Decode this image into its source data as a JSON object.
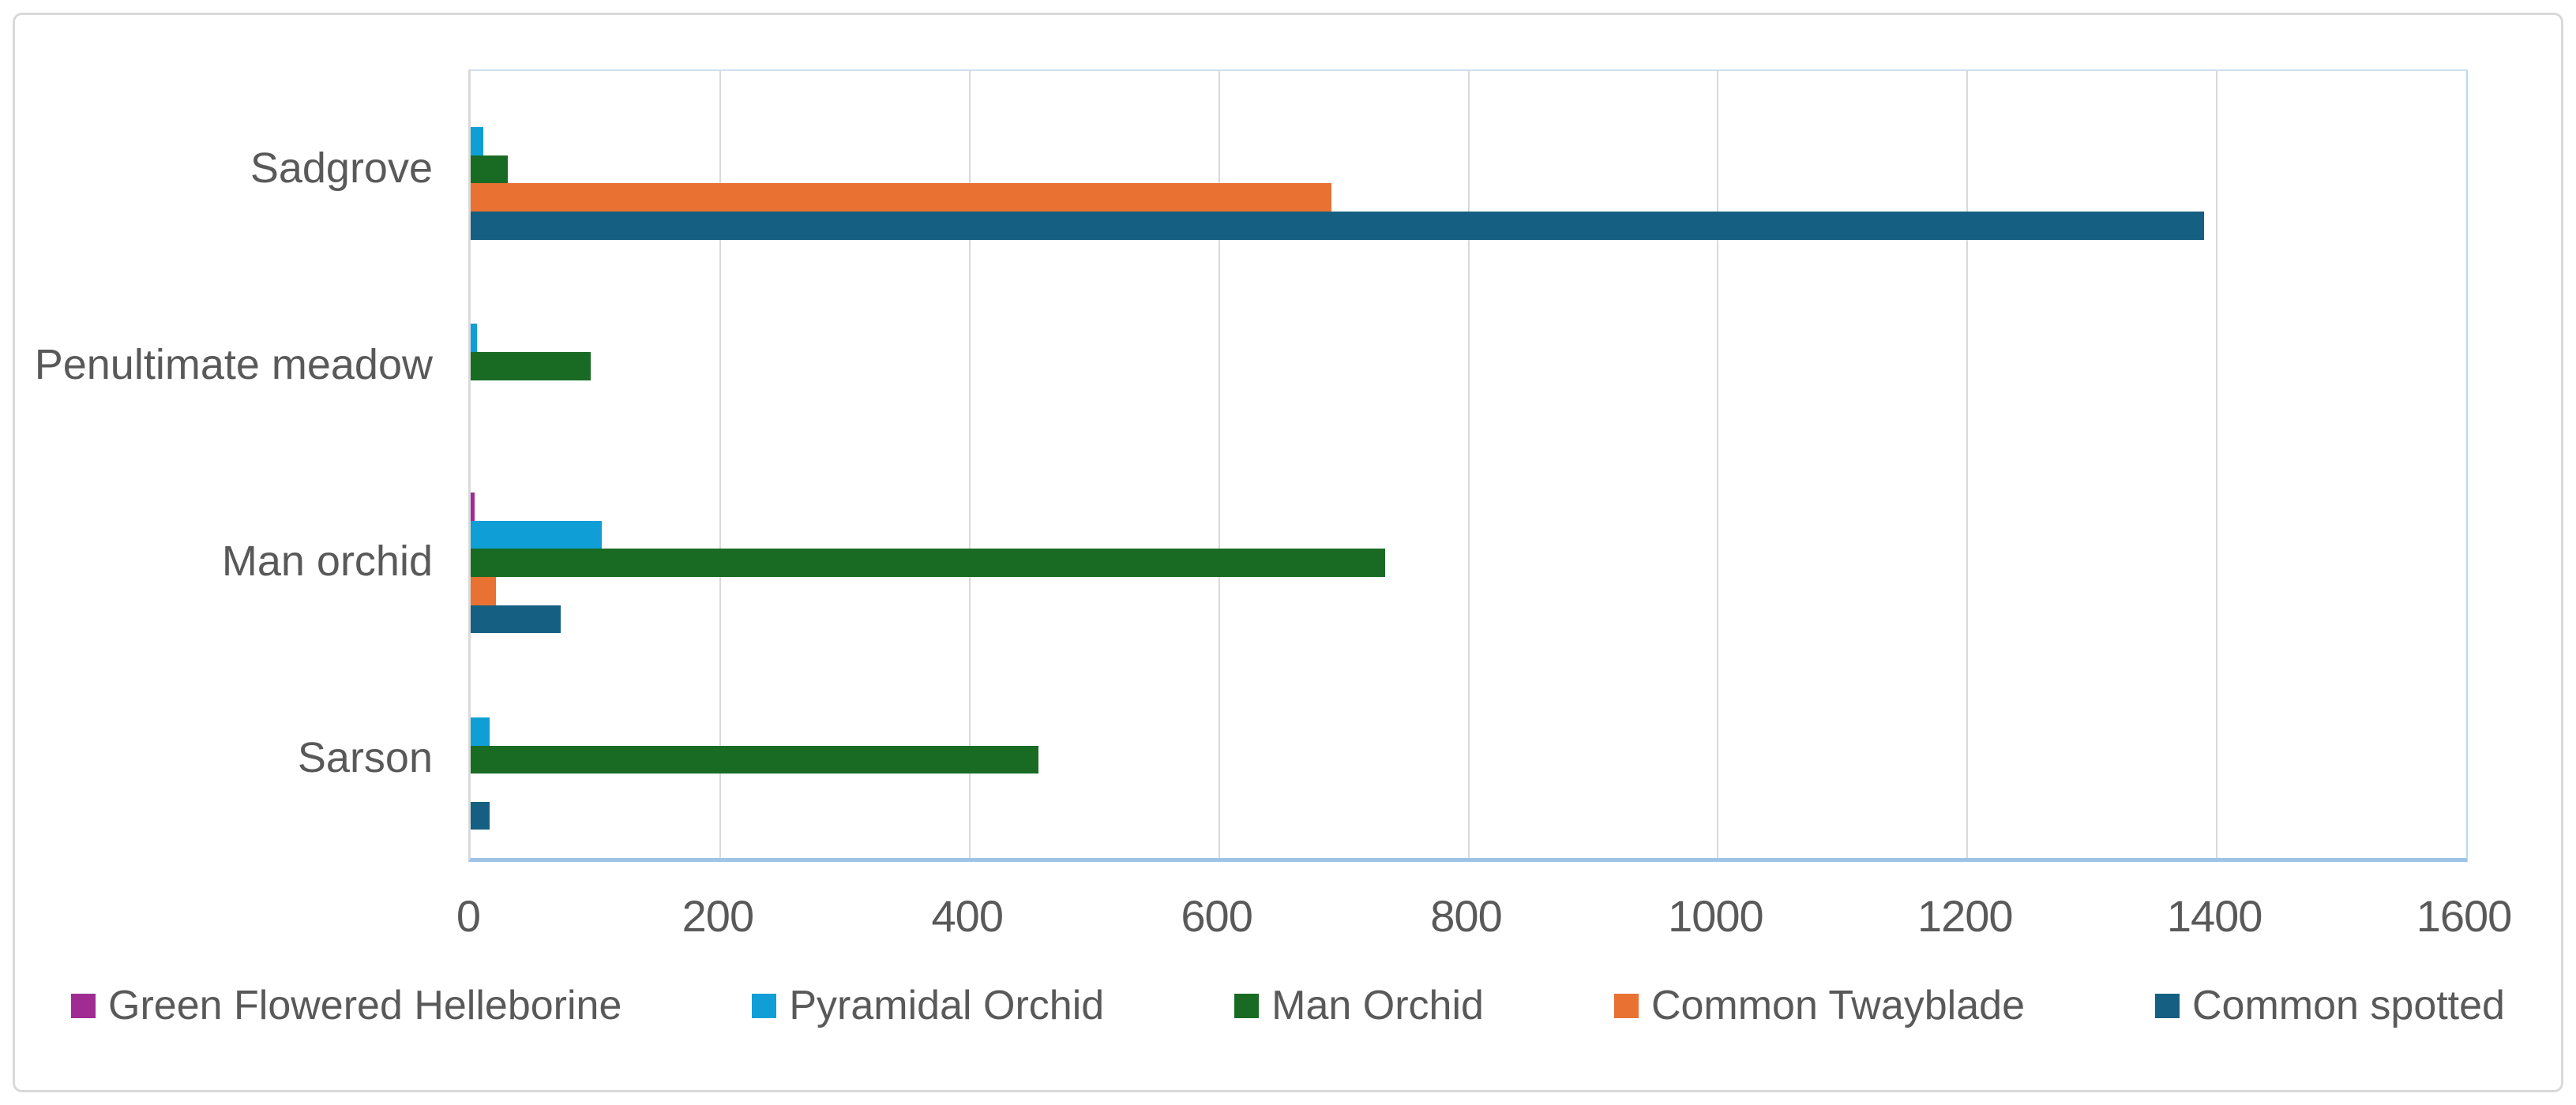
{
  "chart_data": {
    "type": "bar",
    "orientation": "horizontal",
    "title": "",
    "xlabel": "",
    "ylabel": "",
    "grid": true,
    "categories": [
      "Sadgrove",
      "Penultimate meadow",
      "Man orchid",
      "Sarson"
    ],
    "series": [
      {
        "name": "Green Flowered Helleborine",
        "color": "#A02B93",
        "values": [
          0,
          0,
          3,
          0
        ]
      },
      {
        "name": "Pyramidal Orchid",
        "color": "#0F9ED5",
        "values": [
          10,
          5,
          105,
          15
        ]
      },
      {
        "name": "Man Orchid",
        "color": "#196B24",
        "values": [
          30,
          96,
          733,
          455
        ]
      },
      {
        "name": "Common Twayblade",
        "color": "#E97132",
        "values": [
          690,
          0,
          20,
          0
        ]
      },
      {
        "name": "Common spotted",
        "color": "#156082",
        "values": [
          1390,
          0,
          72,
          15
        ]
      }
    ],
    "x_axis": {
      "min": 0,
      "max": 1600,
      "step": 200,
      "tick_labels": [
        "0",
        "200",
        "400",
        "600",
        "800",
        "1000",
        "1200",
        "1400",
        "1600"
      ]
    },
    "legend": {
      "position": "bottom"
    }
  },
  "colors": {
    "text": "#595959",
    "gridline": "#D9D9D9",
    "axis_line": "#D9D9D9",
    "plot_border": "#BDD7EE",
    "category_axis_line": "#9DC3E6",
    "chart_border": "#D9D9D9",
    "background": "#FFFFFF"
  }
}
